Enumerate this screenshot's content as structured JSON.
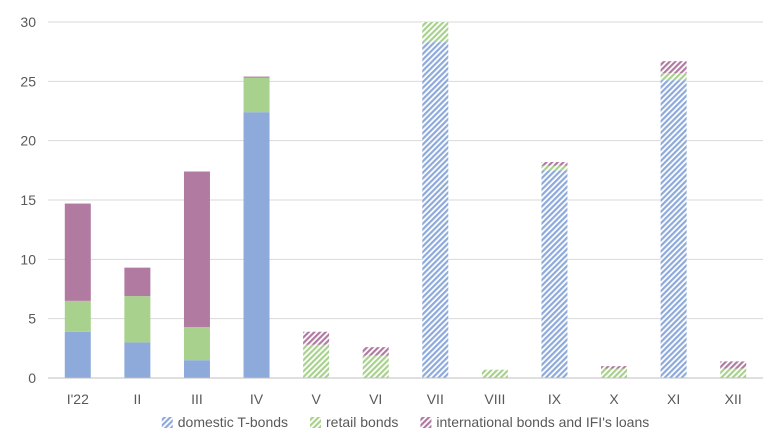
{
  "chart_data": {
    "type": "bar",
    "stacked": true,
    "categories": [
      "I'22",
      "II",
      "III",
      "IV",
      "V",
      "VI",
      "VII",
      "VIII",
      "IX",
      "X",
      "XI",
      "XII"
    ],
    "ylim": [
      0,
      30
    ],
    "yticks": [
      0,
      5,
      10,
      15,
      20,
      25,
      30
    ],
    "grid": true,
    "legend_position": "bottom",
    "series": [
      {
        "name": "domestic T-bonds",
        "color": "#8eaadb",
        "hatched_from_index": 4,
        "values": [
          3.9,
          3.0,
          1.5,
          22.4,
          0,
          0,
          28.3,
          0,
          17.5,
          0,
          25.1,
          0
        ]
      },
      {
        "name": "retail bonds",
        "color": "#a9d18e",
        "hatched_from_index": 4,
        "values": [
          2.6,
          3.9,
          2.8,
          2.9,
          2.8,
          1.9,
          1.7,
          0.7,
          0.4,
          0.8,
          0.6,
          0.8
        ]
      },
      {
        "name": "international bonds and IFI's loans",
        "color": "#b07aa1",
        "hatched_from_index": 4,
        "values": [
          8.2,
          2.4,
          13.1,
          0.1,
          1.1,
          0.7,
          0,
          0,
          0.3,
          0.2,
          1.0,
          0.6
        ]
      }
    ]
  }
}
